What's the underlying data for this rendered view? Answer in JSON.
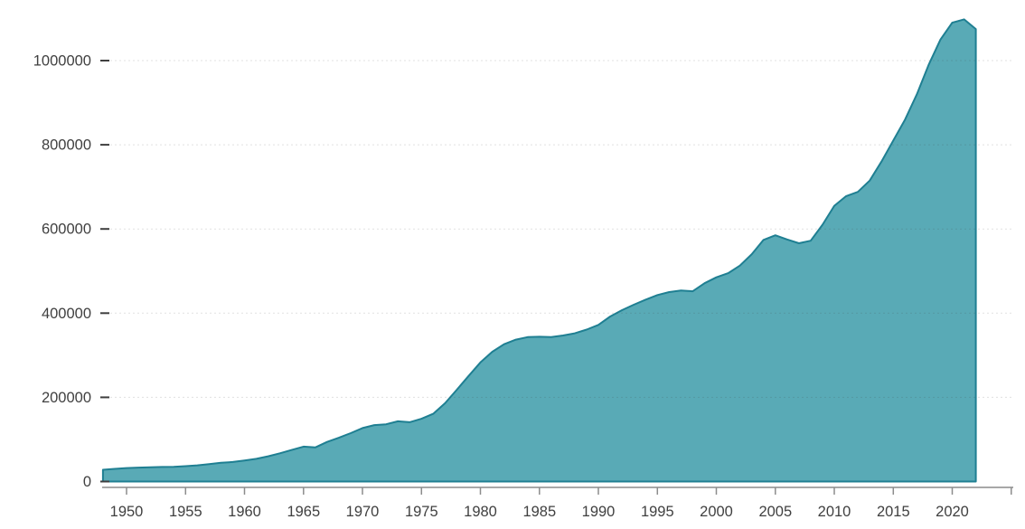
{
  "chart_data": {
    "type": "area",
    "title": "",
    "xlabel": "",
    "ylabel": "",
    "legend": "none",
    "grid": "horizontal dotted",
    "xlim": [
      1948,
      2025
    ],
    "ylim": [
      0,
      1100000
    ],
    "years": [
      1948,
      1949,
      1950,
      1951,
      1952,
      1953,
      1954,
      1955,
      1956,
      1957,
      1958,
      1959,
      1960,
      1961,
      1962,
      1963,
      1964,
      1965,
      1966,
      1967,
      1968,
      1969,
      1970,
      1971,
      1972,
      1973,
      1974,
      1975,
      1976,
      1977,
      1978,
      1979,
      1980,
      1981,
      1982,
      1983,
      1984,
      1985,
      1986,
      1987,
      1988,
      1989,
      1990,
      1991,
      1992,
      1993,
      1994,
      1995,
      1996,
      1997,
      1998,
      1999,
      2000,
      2001,
      2002,
      2003,
      2004,
      2005,
      2006,
      2007,
      2008,
      2009,
      2010,
      2011,
      2012,
      2013,
      2014,
      2015,
      2016,
      2017,
      2018,
      2019,
      2020,
      2021,
      2022
    ],
    "values": [
      28000,
      30000,
      32000,
      33000,
      34000,
      34500,
      35000,
      36500,
      38500,
      41500,
      44500,
      46500,
      50000,
      54000,
      60000,
      67000,
      75000,
      83000,
      81000,
      94000,
      104000,
      115000,
      127000,
      134000,
      136000,
      143000,
      141000,
      149000,
      161000,
      186000,
      218000,
      251000,
      283000,
      308000,
      326000,
      337000,
      343000,
      344000,
      343000,
      347000,
      352000,
      361000,
      372000,
      392000,
      407000,
      420000,
      432000,
      443000,
      450000,
      454000,
      452000,
      471000,
      485000,
      495000,
      513000,
      540000,
      574000,
      585000,
      575000,
      566000,
      572000,
      610000,
      655000,
      678000,
      688000,
      715000,
      760000,
      810000,
      860000,
      920000,
      990000,
      1050000,
      1090000,
      1098000,
      1075000
    ],
    "y_tick_values": [
      0,
      200000,
      400000,
      600000,
      800000,
      1000000
    ],
    "y_tick_labels": [
      "0",
      "200000",
      "400000",
      "600000",
      "800000",
      "1000000"
    ],
    "x_tick_values": [
      1950,
      1955,
      1960,
      1965,
      1970,
      1975,
      1980,
      1985,
      1990,
      1995,
      2000,
      2005,
      2010,
      2015,
      2020,
      2025
    ],
    "x_tick_labels": [
      "1950",
      "1955",
      "1960",
      "1965",
      "1970",
      "1975",
      "1980",
      "1985",
      "1990",
      "1995",
      "2000",
      "2005",
      "2010",
      "2015",
      "2020",
      ""
    ],
    "colors": {
      "area_fill": "#59aab6",
      "area_stroke": "#1f7f92",
      "axis_line": "#8c8c8c",
      "tick_label": "#404040",
      "y_tick_dash": "#3f3f3f",
      "gridline": "rgba(60,60,60,0.16)",
      "background": "#ffffff"
    }
  }
}
